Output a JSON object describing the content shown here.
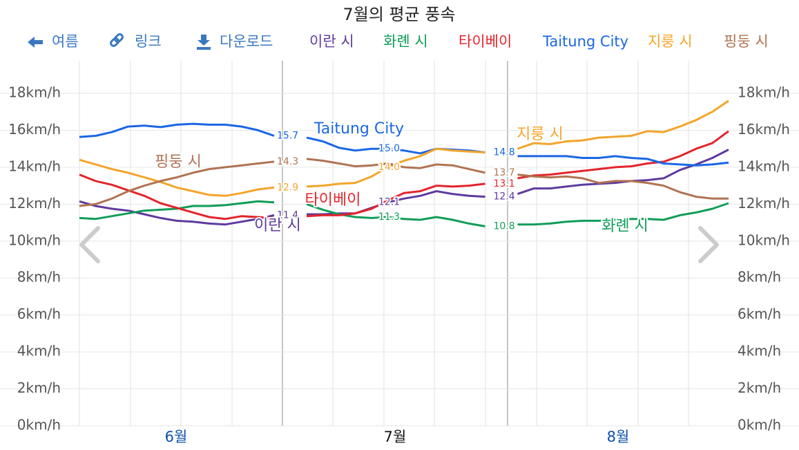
{
  "chart_data": {
    "type": "line",
    "title": "7월의 평균 풍속",
    "nav": [
      "여름",
      "링크",
      "다운로드"
    ],
    "x_labels": [
      "6월",
      "7월",
      "8월"
    ],
    "ylim": [
      0,
      18
    ],
    "yticks": [
      {
        "value": 0,
        "label": "0km/h"
      },
      {
        "value": 2,
        "label": "2km/h"
      },
      {
        "value": 4,
        "label": "4km/h"
      },
      {
        "value": 6,
        "label": "6km/h"
      },
      {
        "value": 8,
        "label": "8km/h"
      },
      {
        "value": 10,
        "label": "10km/h"
      },
      {
        "value": 12,
        "label": "12km/h"
      },
      {
        "value": 14,
        "label": "14km/h"
      },
      {
        "value": 16,
        "label": "16km/h"
      },
      {
        "value": 18,
        "label": "18km/h"
      }
    ],
    "grid": true,
    "series": [
      {
        "name": "이란 시",
        "color": "#5e3a9e",
        "values": [
          12.15,
          11.9,
          11.75,
          11.65,
          11.45,
          11.25,
          11.1,
          11.05,
          10.95,
          10.9,
          11.05,
          11.2,
          11.4,
          null,
          11.45,
          11.45,
          11.5,
          11.5,
          11.8,
          12.1,
          12.3,
          12.45,
          12.7,
          12.55,
          12.45,
          12.4,
          null,
          12.55,
          12.85,
          12.85,
          12.95,
          13.05,
          13.1,
          13.15,
          13.25,
          13.3,
          13.4,
          13.85,
          14.15,
          14.5,
          14.95
        ],
        "value_labels": [
          null,
          null,
          null,
          null,
          null,
          null,
          null,
          null,
          null,
          null,
          null,
          null,
          "11.4",
          null,
          null,
          null,
          null,
          null,
          null,
          "12.1",
          null,
          null,
          null,
          null,
          null,
          "12.4",
          null,
          null,
          null,
          null,
          null,
          null,
          null,
          null,
          null,
          null,
          null,
          null,
          null,
          null,
          null
        ]
      },
      {
        "name": "화롄 시",
        "color": "#0f9d58",
        "values": [
          11.25,
          11.2,
          11.35,
          11.5,
          11.65,
          11.7,
          11.75,
          11.9,
          11.9,
          11.95,
          12.05,
          12.15,
          12.1,
          null,
          12.0,
          11.7,
          11.45,
          11.3,
          11.25,
          11.3,
          11.2,
          11.15,
          11.3,
          11.15,
          10.95,
          10.8,
          null,
          10.9,
          10.9,
          10.95,
          11.05,
          11.1,
          11.1,
          11.15,
          11.2,
          11.2,
          11.15,
          11.4,
          11.55,
          11.75,
          12.05
        ],
        "value_labels": [
          null,
          null,
          null,
          null,
          null,
          null,
          null,
          null,
          null,
          null,
          null,
          null,
          null,
          null,
          null,
          null,
          null,
          null,
          null,
          "11.3",
          null,
          null,
          null,
          null,
          null,
          "10.8",
          null,
          null,
          null,
          null,
          null,
          null,
          null,
          null,
          null,
          null,
          null,
          null,
          null,
          null,
          null
        ]
      },
      {
        "name": "타이베이",
        "color": "#e3242b",
        "values": [
          13.6,
          13.25,
          13.05,
          12.75,
          12.45,
          12.05,
          11.8,
          11.55,
          11.3,
          11.2,
          11.35,
          11.3,
          11.25,
          null,
          11.35,
          11.4,
          11.4,
          11.5,
          11.75,
          12.2,
          12.6,
          12.7,
          13.0,
          12.95,
          13.0,
          13.1,
          null,
          13.4,
          13.55,
          13.6,
          13.7,
          13.8,
          13.9,
          14.0,
          14.05,
          14.2,
          14.3,
          14.6,
          15.0,
          15.3,
          15.95
        ],
        "value_labels": [
          null,
          null,
          null,
          null,
          null,
          null,
          null,
          null,
          null,
          null,
          null,
          null,
          null,
          null,
          null,
          null,
          null,
          null,
          null,
          null,
          null,
          null,
          null,
          null,
          null,
          "13.1",
          null,
          null,
          null,
          null,
          null,
          null,
          null,
          null,
          null,
          null,
          null,
          null,
          null,
          null,
          null
        ]
      },
      {
        "name": "Taitung City",
        "color": "#1a66e6",
        "values": [
          15.64,
          15.7,
          15.9,
          16.2,
          16.25,
          16.17,
          16.3,
          16.35,
          16.3,
          16.3,
          16.2,
          16.0,
          15.7,
          null,
          15.6,
          15.4,
          15.05,
          14.9,
          15.0,
          15.0,
          14.9,
          14.75,
          15.0,
          14.95,
          14.9,
          14.8,
          null,
          14.6,
          14.6,
          14.6,
          14.6,
          14.5,
          14.5,
          14.6,
          14.5,
          14.45,
          14.2,
          14.15,
          14.1,
          14.15,
          14.25
        ],
        "value_labels": [
          null,
          null,
          null,
          null,
          null,
          null,
          null,
          null,
          null,
          null,
          null,
          null,
          "15.7",
          null,
          null,
          null,
          null,
          null,
          null,
          "15.0",
          null,
          null,
          null,
          null,
          null,
          "14.8",
          null,
          null,
          null,
          null,
          null,
          null,
          null,
          null,
          null,
          null,
          null,
          null,
          null,
          null,
          null
        ]
      },
      {
        "name": "지룽 시",
        "color": "#f4a42a",
        "values": [
          14.4,
          14.15,
          13.9,
          13.7,
          13.45,
          13.2,
          12.9,
          12.7,
          12.5,
          12.45,
          12.6,
          12.8,
          12.9,
          null,
          12.95,
          13.0,
          13.1,
          13.15,
          13.5,
          14.0,
          14.35,
          14.6,
          15.0,
          14.9,
          14.85,
          14.8,
          null,
          15.0,
          15.3,
          15.25,
          15.4,
          15.45,
          15.6,
          15.65,
          15.7,
          15.95,
          15.9,
          16.2,
          16.55,
          17.0,
          17.6
        ],
        "value_labels": [
          null,
          null,
          null,
          null,
          null,
          null,
          null,
          null,
          null,
          null,
          null,
          null,
          "12.9",
          null,
          null,
          null,
          null,
          null,
          null,
          "14.0",
          null,
          null,
          null,
          null,
          null,
          null,
          null,
          null,
          null,
          null,
          null,
          null,
          null,
          null,
          null,
          null,
          null,
          null,
          null,
          null,
          null
        ]
      },
      {
        "name": "핑둥 시",
        "color": "#b07352",
        "values": [
          11.9,
          12.0,
          12.3,
          12.7,
          13.0,
          13.25,
          13.45,
          13.7,
          13.9,
          14.0,
          14.1,
          14.2,
          14.3,
          null,
          14.45,
          14.35,
          14.2,
          14.05,
          14.1,
          14.2,
          14.0,
          13.95,
          14.15,
          14.1,
          13.9,
          13.7,
          null,
          13.6,
          13.5,
          13.45,
          13.5,
          13.4,
          13.15,
          13.25,
          13.25,
          13.15,
          13.0,
          12.65,
          12.4,
          12.3,
          12.3
        ],
        "value_labels": [
          null,
          null,
          null,
          null,
          null,
          null,
          null,
          null,
          null,
          null,
          null,
          null,
          "14.3",
          null,
          null,
          null,
          null,
          null,
          null,
          null,
          null,
          null,
          null,
          null,
          null,
          "13.7",
          null,
          null,
          null,
          null,
          null,
          null,
          null,
          null,
          null,
          null,
          null,
          null,
          null,
          null,
          null
        ]
      }
    ]
  }
}
